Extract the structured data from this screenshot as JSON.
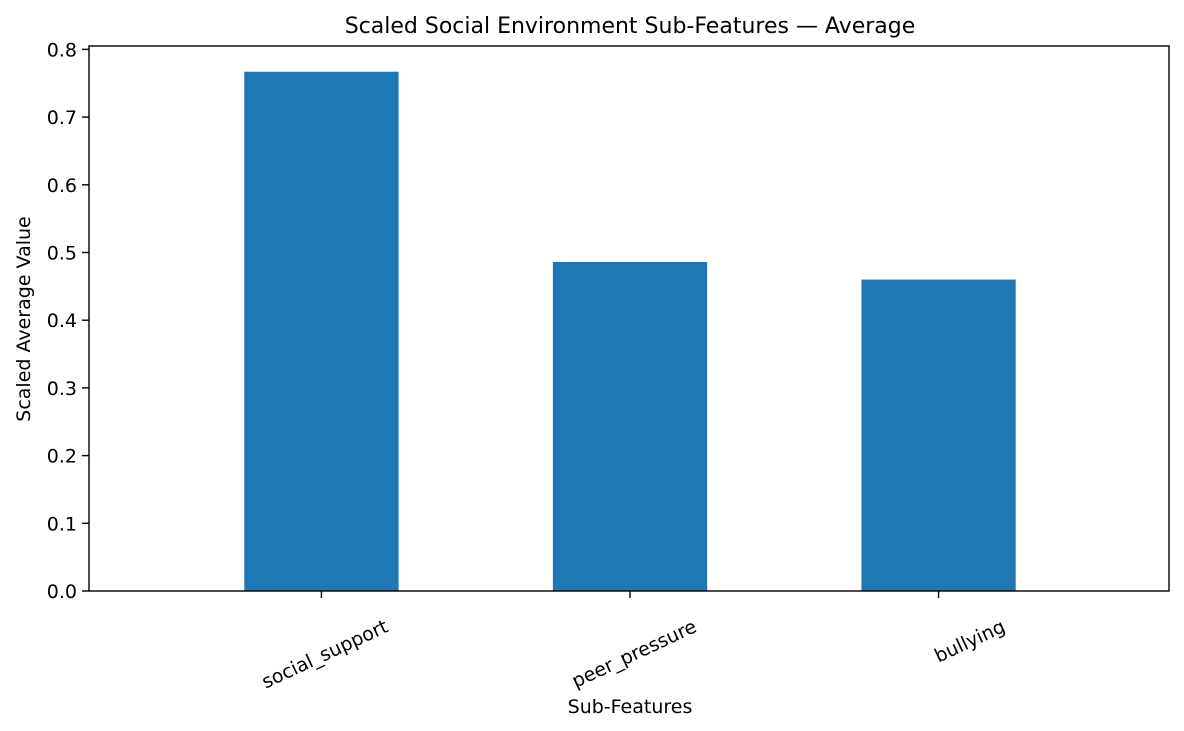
{
  "chart_data": {
    "type": "bar",
    "title": "Scaled Social Environment Sub-Features — Average",
    "xlabel": "Sub-Features",
    "ylabel": "Scaled Average Value",
    "categories": [
      "social_support",
      "peer_pressure",
      "bullying"
    ],
    "values": [
      0.767,
      0.486,
      0.46
    ],
    "ylim": [
      0,
      0.805
    ],
    "yticks": [
      0.0,
      0.1,
      0.2,
      0.3,
      0.4,
      0.5,
      0.6,
      0.7,
      0.8
    ],
    "ytick_labels": [
      "0.0",
      "0.1",
      "0.2",
      "0.3",
      "0.4",
      "0.5",
      "0.6",
      "0.7",
      "0.8"
    ],
    "xtick_rotation_deg": -25,
    "bar_color": "#1f77b4",
    "grid": false,
    "legend": "none"
  }
}
